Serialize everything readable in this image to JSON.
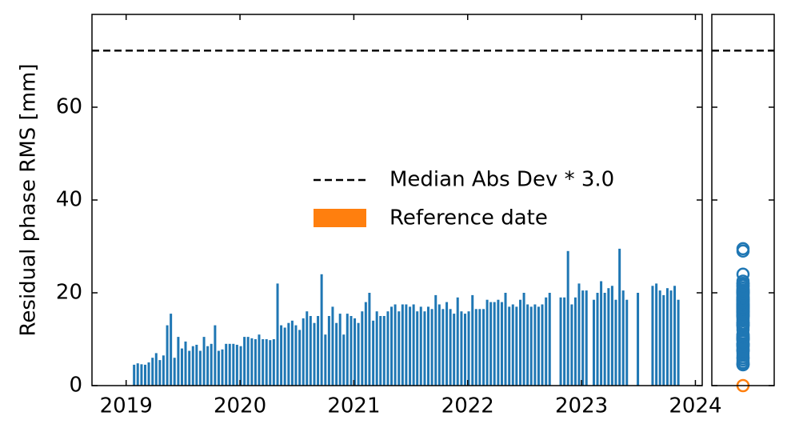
{
  "chart_data": {
    "type": "bar",
    "ylabel": "Residual phase RMS [mm]",
    "x": [
      2019.07,
      2019.102,
      2019.135,
      2019.167,
      2019.199,
      2019.232,
      2019.264,
      2019.296,
      2019.328,
      2019.361,
      2019.393,
      2019.425,
      2019.458,
      2019.49,
      2019.522,
      2019.555,
      2019.587,
      2019.619,
      2019.651,
      2019.684,
      2019.716,
      2019.748,
      2019.781,
      2019.813,
      2019.845,
      2019.878,
      2019.91,
      2019.942,
      2019.974,
      2020.007,
      2020.039,
      2020.071,
      2020.104,
      2020.136,
      2020.168,
      2020.201,
      2020.233,
      2020.265,
      2020.297,
      2020.33,
      2020.362,
      2020.394,
      2020.427,
      2020.459,
      2020.491,
      2020.524,
      2020.556,
      2020.588,
      2020.62,
      2020.653,
      2020.685,
      2020.717,
      2020.75,
      2020.782,
      2020.814,
      2020.847,
      2020.879,
      2020.911,
      2020.943,
      2020.976,
      2021.008,
      2021.04,
      2021.073,
      2021.105,
      2021.137,
      2021.17,
      2021.202,
      2021.234,
      2021.266,
      2021.299,
      2021.331,
      2021.363,
      2021.396,
      2021.428,
      2021.46,
      2021.493,
      2021.525,
      2021.557,
      2021.589,
      2021.622,
      2021.654,
      2021.686,
      2021.719,
      2021.751,
      2021.783,
      2021.816,
      2021.848,
      2021.88,
      2021.912,
      2021.945,
      2021.977,
      2022.009,
      2022.042,
      2022.074,
      2022.106,
      2022.139,
      2022.171,
      2022.203,
      2022.235,
      2022.268,
      2022.3,
      2022.332,
      2022.365,
      2022.397,
      2022.429,
      2022.462,
      2022.494,
      2022.526,
      2022.558,
      2022.591,
      2022.623,
      2022.655,
      2022.688,
      2022.72,
      2022.817,
      2022.849,
      2022.881,
      2022.914,
      2022.946,
      2022.978,
      2023.011,
      2023.043,
      2023.108,
      2023.14,
      2023.172,
      2023.204,
      2023.237,
      2023.269,
      2023.301,
      2023.334,
      2023.366,
      2023.398,
      2023.495,
      2023.624,
      2023.657,
      2023.689,
      2023.721,
      2023.754,
      2023.786,
      2023.818,
      2023.85
    ],
    "values": [
      4.5,
      4.8,
      4.6,
      4.5,
      5,
      6,
      7,
      5.5,
      6.5,
      13,
      15.5,
      6,
      10.5,
      8,
      9.5,
      7.5,
      8.5,
      8.8,
      7.5,
      10.5,
      8.5,
      9,
      13,
      7.5,
      7.8,
      9,
      9,
      9,
      8.8,
      8.5,
      10.5,
      10.5,
      10.2,
      10,
      11,
      10,
      10,
      9.8,
      10,
      22,
      13,
      12.5,
      13.5,
      14,
      13,
      12,
      14.5,
      16,
      15,
      13.5,
      15,
      24,
      11,
      15,
      17,
      13.5,
      15.5,
      11,
      15.5,
      15,
      14.5,
      13.5,
      16,
      18,
      20,
      14,
      16,
      15,
      15,
      16,
      17,
      17.5,
      16,
      17.5,
      17.5,
      17,
      17.5,
      16,
      17,
      16,
      17,
      16.5,
      19.5,
      17.5,
      16.5,
      18,
      16.5,
      15.5,
      19,
      16,
      15.5,
      16,
      19.5,
      16.5,
      16.5,
      16.5,
      18.5,
      18,
      18,
      18.5,
      18,
      20,
      17,
      17.5,
      17,
      18.5,
      20,
      17.5,
      17,
      17.5,
      17,
      17.5,
      19,
      20,
      19,
      19,
      29,
      17.5,
      19,
      22,
      20.5,
      20.5,
      18.5,
      20,
      22.5,
      20,
      21,
      21.5,
      18.5,
      29.5,
      20.5,
      18.5,
      20,
      21.5,
      22,
      20.5,
      19.5,
      21,
      20.5,
      21.5,
      18.5
    ],
    "color": "#1f77b4",
    "xlim": [
      2018.7,
      2024.06
    ],
    "xticks": [
      2019,
      2020,
      2021,
      2022,
      2023,
      2024
    ],
    "ylim": [
      0,
      80
    ],
    "yticks": [
      0,
      20,
      40,
      60
    ],
    "threshold": {
      "name": "Median Abs Dev * 3.0",
      "value": 72.2
    },
    "reference": {
      "name": "Reference date",
      "color": "#ff7f0e",
      "value": 0
    },
    "legend": "center"
  }
}
